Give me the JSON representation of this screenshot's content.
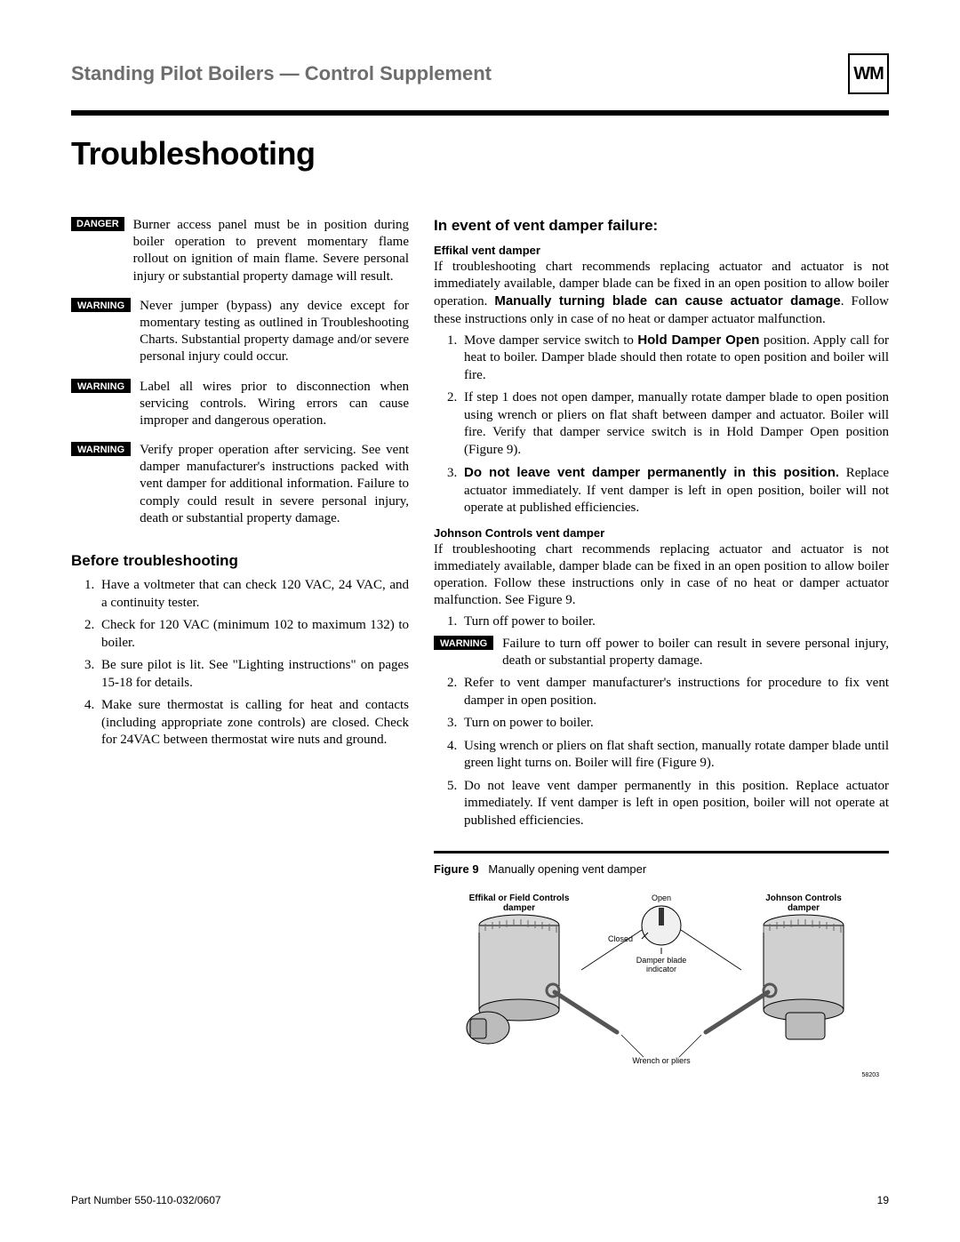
{
  "header": {
    "title": "Standing Pilot Boilers — Control Supplement",
    "logo_text": "WM"
  },
  "section_title": "Troubleshooting",
  "left": {
    "alerts": [
      {
        "tag": "DANGER",
        "tag_class": "tag-danger",
        "text": "Burner access panel must be in position during boiler operation to prevent momentary flame rollout on ignition of main flame. Severe personal injury or substantial property damage will result."
      },
      {
        "tag": "WARNING",
        "tag_class": "tag-warning",
        "text": "Never jumper (bypass) any device except for momentary testing as outlined in Troubleshooting Charts. Substantial property damage and/or severe personal injury could occur."
      },
      {
        "tag": "WARNING",
        "tag_class": "tag-warning",
        "text": "Label all wires prior to disconnection when servicing controls. Wiring errors can cause improper and dangerous operation."
      },
      {
        "tag": "WARNING",
        "tag_class": "tag-warning",
        "text": "Verify proper operation after servicing. See vent damper manufacturer's instructions packed with vent damper for additional information. Failure to comply could result in severe personal injury, death or substantial property damage."
      }
    ],
    "before_head": "Before troubleshooting",
    "before_items": [
      "Have a voltmeter that can check 120 VAC, 24 VAC, and a continuity tester.",
      "Check for 120 VAC (minimum 102 to maximum 132) to boiler.",
      "Be sure pilot is lit. See \"Lighting instructions\" on pages 15-18 for details.",
      "Make sure thermostat is calling for heat and contacts (including appropriate zone controls) are closed. Check for 24VAC between thermostat wire nuts and ground."
    ]
  },
  "right": {
    "head": "In event of vent damper failure:",
    "effikal_head": "Effikal vent damper",
    "effikal_intro_1": "If troubleshooting chart recommends replacing actuator and actuator is not immediately available, damper blade can be fixed in an open position to allow boiler operation. ",
    "effikal_intro_bold": "Manually turning blade can cause actuator damage",
    "effikal_intro_2": ". Follow these instructions only in case of no heat or damper actuator malfunction.",
    "effikal_1a": "Move damper service switch to ",
    "effikal_1b": "Hold Damper Open",
    "effikal_1c": " position. Apply call for heat to boiler. Damper blade should then rotate to open position and boiler will fire.",
    "effikal_2": "If step 1 does not open damper, manually rotate damper blade to open position using wrench or pliers on flat shaft between damper and actuator. Boiler will fire. Verify that damper service switch is in Hold Damper Open position (Figure 9).",
    "effikal_3a": "Do not leave vent damper permanently in this position.",
    "effikal_3b": " Replace actuator immediately. If vent damper is left in open position, boiler will not operate at published efficiencies.",
    "johnson_head": "Johnson Controls vent damper",
    "johnson_intro": "If troubleshooting chart recommends replacing actuator and actuator is not immediately available, damper blade can be fixed in an open position to allow boiler operation. Follow these instructions only in case of no heat or damper actuator malfunction. See Figure 9.",
    "johnson_items_pre": "Turn off power to boiler.",
    "johnson_warning": {
      "tag": "WARNING",
      "text": "Failure to turn off power to boiler can result in severe personal injury, death or substantial property damage."
    },
    "johnson_items_post": [
      "Refer to vent damper manufacturer's instructions for procedure to fix vent damper in open position.",
      "Turn on power to boiler.",
      "Using wrench or pliers on flat shaft section, manually rotate damper blade until green light turns on. Boiler will fire (Figure 9).",
      "Do not leave vent damper permanently in this position. Replace actuator immediately. If vent damper is left in open position, boiler will not operate at published efficiencies."
    ],
    "figure_label": "Figure 9",
    "figure_caption": "Manually opening vent damper",
    "fig_labels": {
      "left_damper": "Effikal or Field Controls damper",
      "right_damper": "Johnson Controls damper",
      "open": "Open",
      "closed": "Closed",
      "indicator": "Damper blade indicator",
      "wrench": "Wrench or pliers",
      "code": "58203"
    }
  },
  "footer": {
    "part": "Part Number 550-110-032/0607",
    "page": "19"
  }
}
